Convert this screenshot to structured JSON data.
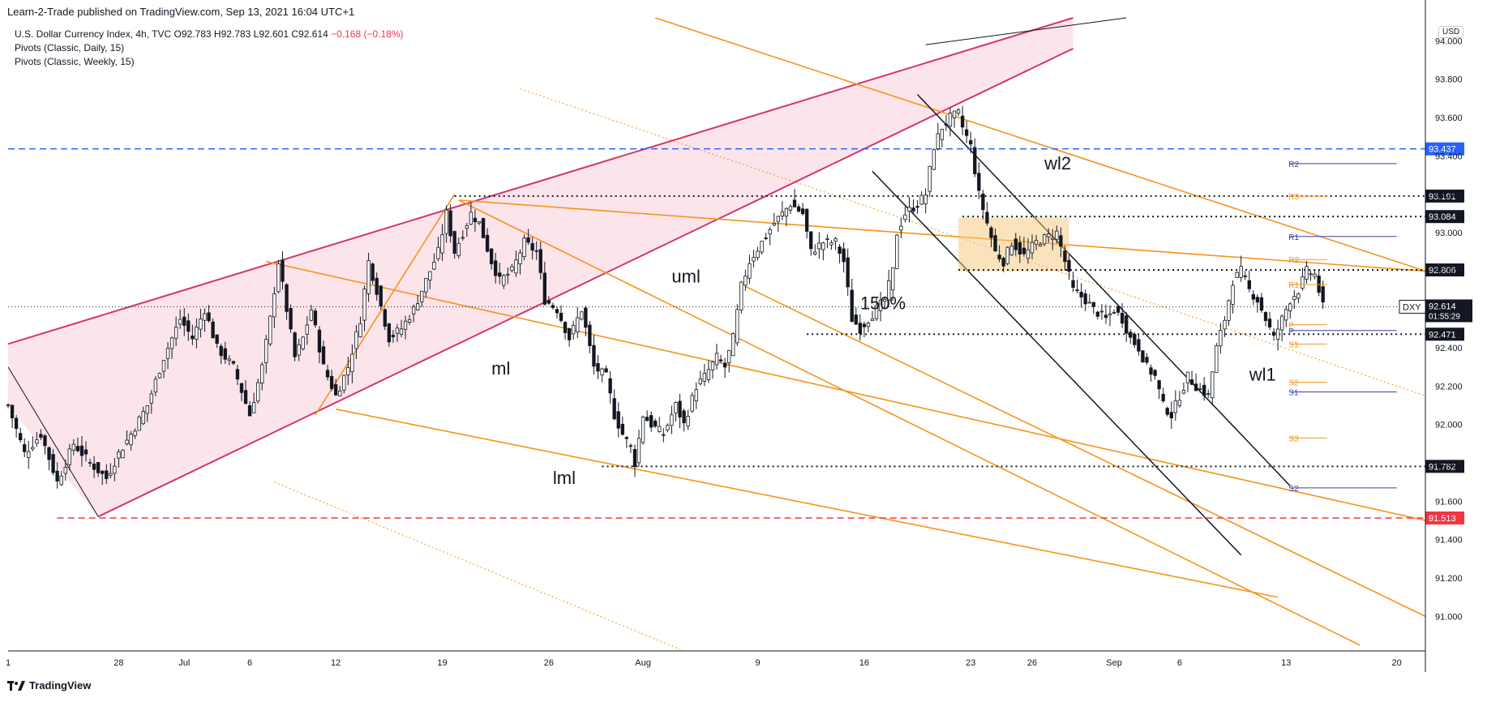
{
  "header": {
    "published": "Learn-2-Trade published on TradingView.com, Sep 13, 2021 16:04 UTC+1"
  },
  "legend": {
    "symbol": "U.S. Dollar Currency Index, 4h, TVC",
    "o_label": "O",
    "o": "92.783",
    "h_label": "H",
    "h": "92.783",
    "l_label": "L",
    "l": "92.601",
    "c_label": "C",
    "c": "92.614",
    "change": "−0.168 (−0.18%)",
    "studies": [
      "Pivots (Classic, Daily, 15)",
      "Pivots (Classic, Weekly, 15)"
    ]
  },
  "currency": "USD",
  "footer": {
    "brand": "TradingView"
  },
  "chart_data": {
    "type": "candlestick",
    "symbol": "DXY",
    "timeframe": "4h",
    "ylim": [
      90.82,
      94.12
    ],
    "y_ticks": [
      "94.000",
      "93.800",
      "93.600",
      "93.400",
      "93.200",
      "93.000",
      "92.800",
      "92.600",
      "92.400",
      "92.200",
      "92.000",
      "91.800",
      "91.600",
      "91.400",
      "91.200",
      "91.000"
    ],
    "x_ticks": [
      "1",
      "28",
      "Jul",
      "6",
      "12",
      "19",
      "26",
      "Aug",
      "9",
      "16",
      "23",
      "26",
      "Sep",
      "6",
      "13",
      "20"
    ],
    "x_tick_idx": [
      0,
      27,
      43,
      59,
      80,
      106,
      132,
      155,
      183,
      209,
      235,
      250,
      270,
      286,
      312,
      339
    ],
    "n_bars": 346,
    "close_path": [
      [
        0,
        92.1
      ],
      [
        4,
        91.85
      ],
      [
        8,
        91.95
      ],
      [
        12,
        91.7
      ],
      [
        16,
        91.9
      ],
      [
        20,
        91.8
      ],
      [
        24,
        91.72
      ],
      [
        27,
        91.85
      ],
      [
        30,
        91.95
      ],
      [
        34,
        92.1
      ],
      [
        38,
        92.35
      ],
      [
        42,
        92.55
      ],
      [
        45,
        92.45
      ],
      [
        48,
        92.6
      ],
      [
        51,
        92.4
      ],
      [
        55,
        92.3
      ],
      [
        59,
        92.05
      ],
      [
        62,
        92.3
      ],
      [
        64,
        92.55
      ],
      [
        66,
        92.85
      ],
      [
        68,
        92.6
      ],
      [
        70,
        92.35
      ],
      [
        72,
        92.45
      ],
      [
        74,
        92.6
      ],
      [
        77,
        92.3
      ],
      [
        80,
        92.15
      ],
      [
        83,
        92.3
      ],
      [
        86,
        92.55
      ],
      [
        88,
        92.85
      ],
      [
        90,
        92.7
      ],
      [
        93,
        92.45
      ],
      [
        96,
        92.5
      ],
      [
        99,
        92.6
      ],
      [
        102,
        92.75
      ],
      [
        105,
        92.9
      ],
      [
        107,
        93.1
      ],
      [
        109,
        92.9
      ],
      [
        111,
        93.0
      ],
      [
        113,
        93.1
      ],
      [
        115,
        93.05
      ],
      [
        118,
        92.85
      ],
      [
        120,
        92.75
      ],
      [
        123,
        92.8
      ],
      [
        126,
        92.95
      ],
      [
        129,
        92.9
      ],
      [
        131,
        92.65
      ],
      [
        134,
        92.6
      ],
      [
        137,
        92.45
      ],
      [
        140,
        92.6
      ],
      [
        143,
        92.3
      ],
      [
        146,
        92.25
      ],
      [
        148,
        92.05
      ],
      [
        150,
        91.95
      ],
      [
        152,
        91.88
      ],
      [
        153,
        91.8
      ],
      [
        155,
        92.05
      ],
      [
        157,
        92.0
      ],
      [
        160,
        91.95
      ],
      [
        163,
        92.1
      ],
      [
        165,
        92.0
      ],
      [
        168,
        92.2
      ],
      [
        170,
        92.25
      ],
      [
        173,
        92.35
      ],
      [
        175,
        92.3
      ],
      [
        177,
        92.45
      ],
      [
        179,
        92.72
      ],
      [
        181,
        92.85
      ],
      [
        184,
        92.95
      ],
      [
        187,
        93.05
      ],
      [
        189,
        93.1
      ],
      [
        191,
        93.15
      ],
      [
        194,
        93.1
      ],
      [
        196,
        92.9
      ],
      [
        199,
        92.95
      ],
      [
        202,
        92.95
      ],
      [
        204,
        92.85
      ],
      [
        206,
        92.55
      ],
      [
        208,
        92.5
      ],
      [
        210,
        92.55
      ],
      [
        212,
        92.6
      ],
      [
        214,
        92.65
      ],
      [
        216,
        92.8
      ],
      [
        217,
        93.0
      ],
      [
        219,
        93.1
      ],
      [
        222,
        93.15
      ],
      [
        224,
        93.2
      ],
      [
        226,
        93.45
      ],
      [
        228,
        93.55
      ],
      [
        230,
        93.6
      ],
      [
        232,
        93.62
      ],
      [
        233,
        93.55
      ],
      [
        235,
        93.45
      ],
      [
        237,
        93.2
      ],
      [
        239,
        93.05
      ],
      [
        241,
        92.9
      ],
      [
        243,
        92.85
      ],
      [
        245,
        92.95
      ],
      [
        248,
        92.88
      ],
      [
        251,
        92.95
      ],
      [
        254,
        92.98
      ],
      [
        256,
        93.0
      ],
      [
        258,
        92.85
      ],
      [
        260,
        92.7
      ],
      [
        263,
        92.65
      ],
      [
        265,
        92.6
      ],
      [
        268,
        92.55
      ],
      [
        270,
        92.6
      ],
      [
        272,
        92.55
      ],
      [
        274,
        92.45
      ],
      [
        276,
        92.4
      ],
      [
        278,
        92.3
      ],
      [
        280,
        92.25
      ],
      [
        282,
        92.1
      ],
      [
        284,
        92.05
      ],
      [
        286,
        92.15
      ],
      [
        288,
        92.25
      ],
      [
        290,
        92.2
      ],
      [
        293,
        92.15
      ],
      [
        295,
        92.4
      ],
      [
        297,
        92.55
      ],
      [
        299,
        92.75
      ],
      [
        301,
        92.8
      ],
      [
        303,
        92.7
      ],
      [
        305,
        92.65
      ],
      [
        307,
        92.55
      ],
      [
        309,
        92.45
      ],
      [
        311,
        92.55
      ],
      [
        313,
        92.65
      ],
      [
        315,
        92.7
      ],
      [
        317,
        92.8
      ],
      [
        319,
        92.78
      ],
      [
        321,
        92.614
      ]
    ],
    "levels": [
      {
        "price": 93.437,
        "label": "93.437",
        "style": "dashed",
        "color": "#2962ff"
      },
      {
        "price": 93.191,
        "label": "93.191",
        "style": "dotted",
        "color": "#131722"
      },
      {
        "price": 93.084,
        "label": "93.084",
        "style": "dotted",
        "color": "#131722"
      },
      {
        "price": 92.806,
        "label": "92.806",
        "style": "dotted",
        "color": "#131722"
      },
      {
        "price": 92.471,
        "label": "92.471",
        "style": "dotted",
        "color": "#131722"
      },
      {
        "price": 91.782,
        "label": "91.782",
        "style": "dotted",
        "color": "#131722"
      },
      {
        "price": 91.513,
        "label": "91.513",
        "style": "dashed",
        "color": "#f23645"
      }
    ],
    "last_price": {
      "label": "DXY",
      "value": "92.614",
      "countdown": "01:55:29"
    },
    "pivots_daily": [
      {
        "name": "R3",
        "price": 93.19
      },
      {
        "name": "R2",
        "price": 92.86
      },
      {
        "name": "R1",
        "price": 92.73
      },
      {
        "name": "P",
        "price": 92.52
      },
      {
        "name": "S1",
        "price": 92.42
      },
      {
        "name": "S2",
        "price": 92.22
      },
      {
        "name": "S3",
        "price": 91.93
      }
    ],
    "pivots_weekly": [
      {
        "name": "R2",
        "price": 93.36
      },
      {
        "name": "R1",
        "price": 92.98
      },
      {
        "name": "P",
        "price": 92.49
      },
      {
        "name": "S1",
        "price": 92.17
      },
      {
        "name": "S2",
        "price": 91.67
      }
    ],
    "annotations": [
      "uml",
      "ml",
      "lml",
      "150%",
      "wl2",
      "wl1"
    ],
    "colors": {
      "up": "#131722",
      "down": "#131722",
      "channel": "#d6336c",
      "pitchfork": "#f7931a",
      "pivot_daily": "#f7931a",
      "pivot_weekly": "#3f3fa6"
    }
  }
}
